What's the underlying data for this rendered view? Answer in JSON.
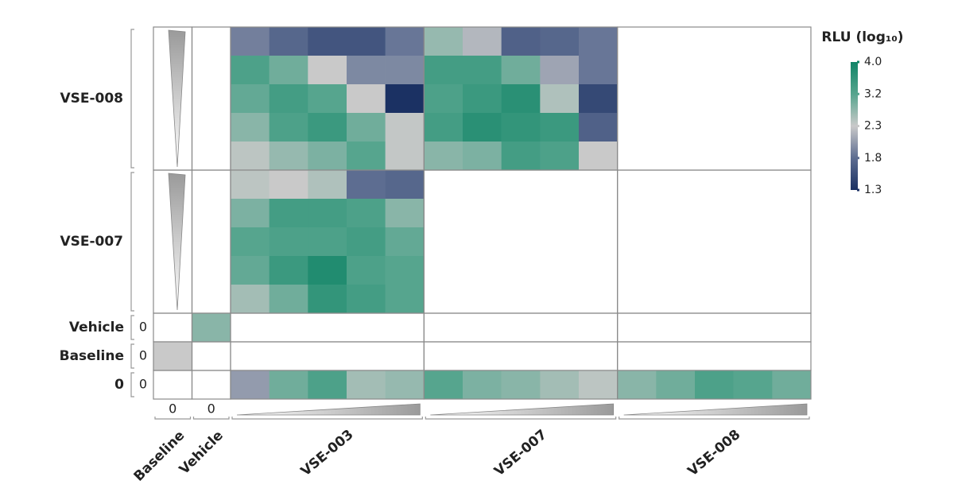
{
  "chart_data": {
    "type": "heatmap",
    "row_groups": [
      {
        "label": "VSE-008",
        "rows": [
          [
            [
              null
            ],
            [
              null
            ],
            [
              1.9,
              1.75,
              1.6,
              1.6,
              1.85
            ],
            [
              2.7,
              2.2,
              1.7,
              1.75,
              1.85
            ],
            [
              null,
              null,
              null,
              null,
              null
            ]
          ],
          [
            [
              null
            ],
            [
              null
            ],
            [
              3.3,
              3.0,
              2.3,
              1.95,
              1.95
            ],
            [
              3.4,
              3.4,
              3.0,
              2.1,
              1.85
            ],
            [
              null,
              null,
              null,
              null,
              null
            ]
          ],
          [
            [
              null
            ],
            [
              null
            ],
            [
              3.1,
              3.4,
              3.2,
              2.3,
              1.3
            ],
            [
              3.3,
              3.5,
              3.7,
              2.5,
              1.5
            ],
            [
              null,
              null,
              null,
              null,
              null
            ]
          ],
          [
            [
              null
            ],
            [
              null
            ],
            [
              2.8,
              3.3,
              3.5,
              3.0,
              2.35
            ],
            [
              3.4,
              3.7,
              3.6,
              3.5,
              1.7
            ],
            [
              null,
              null,
              null,
              null,
              null
            ]
          ],
          [
            [
              null
            ],
            [
              null
            ],
            [
              2.4,
              2.7,
              2.9,
              3.2,
              2.35
            ],
            [
              2.8,
              2.9,
              3.4,
              3.3,
              2.3
            ],
            [
              null,
              null,
              null,
              null,
              null
            ]
          ]
        ]
      },
      {
        "label": "VSE-007",
        "rows": [
          [
            [
              null
            ],
            [
              null
            ],
            [
              2.4,
              2.3,
              2.5,
              1.8,
              1.75
            ],
            [
              null,
              null,
              null,
              null,
              null
            ],
            [
              null,
              null,
              null,
              null,
              null
            ]
          ],
          [
            [
              null
            ],
            [
              null
            ],
            [
              2.9,
              3.4,
              3.4,
              3.3,
              2.8
            ],
            [
              null,
              null,
              null,
              null,
              null
            ],
            [
              null,
              null,
              null,
              null,
              null
            ]
          ],
          [
            [
              null
            ],
            [
              null
            ],
            [
              3.2,
              3.3,
              3.3,
              3.4,
              3.1
            ],
            [
              null,
              null,
              null,
              null,
              null
            ],
            [
              null,
              null,
              null,
              null,
              null
            ]
          ],
          [
            [
              null
            ],
            [
              null
            ],
            [
              3.1,
              3.5,
              3.8,
              3.3,
              3.2
            ],
            [
              null,
              null,
              null,
              null,
              null
            ],
            [
              null,
              null,
              null,
              null,
              null
            ]
          ],
          [
            [
              null
            ],
            [
              null
            ],
            [
              2.6,
              3.0,
              3.6,
              3.4,
              3.2
            ],
            [
              null,
              null,
              null,
              null,
              null
            ],
            [
              null,
              null,
              null,
              null,
              null
            ]
          ]
        ]
      },
      {
        "label": "Vehicle",
        "dose_label": "0",
        "rows": [
          [
            [
              null
            ],
            [
              2.8
            ],
            [
              null,
              null,
              null,
              null,
              null
            ],
            [
              null,
              null,
              null,
              null,
              null
            ],
            [
              null,
              null,
              null,
              null,
              null
            ]
          ]
        ]
      },
      {
        "label": "Baseline",
        "dose_label": "0",
        "rows": [
          [
            [
              2.3
            ],
            [
              null
            ],
            [
              null,
              null,
              null,
              null,
              null
            ],
            [
              null,
              null,
              null,
              null,
              null
            ],
            [
              null,
              null,
              null,
              null,
              null
            ]
          ]
        ]
      },
      {
        "label": "0",
        "dose_label": "0",
        "rows": [
          [
            [
              null
            ],
            [
              null
            ],
            [
              2.05,
              3.0,
              3.3,
              2.6,
              2.7
            ],
            [
              3.2,
              2.9,
              2.8,
              2.6,
              2.4
            ],
            [
              2.8,
              3.0,
              3.3,
              3.2,
              3.0
            ]
          ]
        ]
      }
    ],
    "column_groups": [
      {
        "label": "Baseline",
        "dose_label": "0"
      },
      {
        "label": "Vehicle",
        "dose_label": "0"
      },
      {
        "label": "VSE-003"
      },
      {
        "label": "VSE-007"
      },
      {
        "label": "VSE-008"
      }
    ],
    "colorbar": {
      "title": "RLU (log₁₀)",
      "lim": [
        1.3,
        4.0
      ],
      "ticks": [
        1.3,
        1.8,
        2.3,
        3.2,
        {
          "value": 4,
          "label": "4.0"
        }
      ],
      "colors": [
        "#1b3163",
        "#5d6d91",
        "#c9c9c9",
        "#56a58e",
        "#0f8466"
      ]
    }
  }
}
